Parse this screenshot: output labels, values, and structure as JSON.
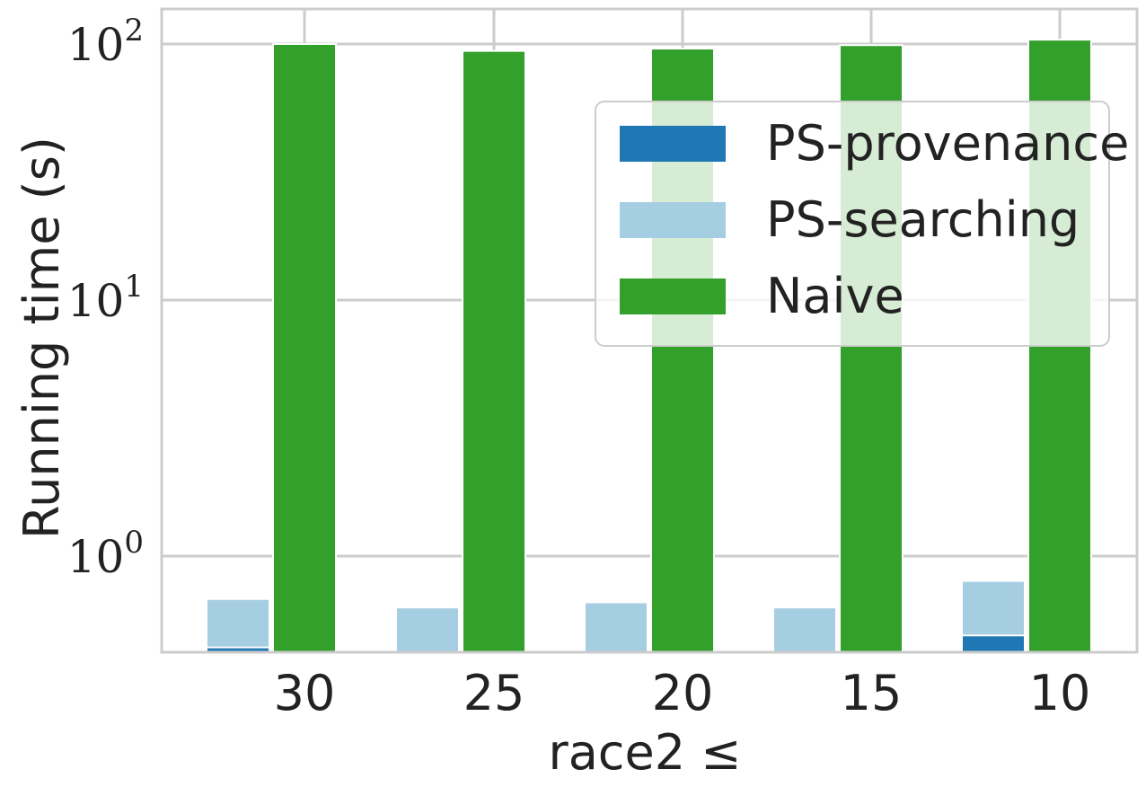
{
  "chart_data": {
    "type": "bar",
    "ylabel": "Running time (s)",
    "xlabel": "race2 ≤",
    "yscale": "log",
    "ylim": [
      0.42,
      130
    ],
    "grid": true,
    "legend_position": "top-right",
    "categories": [
      "30",
      "25",
      "20",
      "15",
      "10"
    ],
    "yticks": [
      {
        "value": 1,
        "base": "10",
        "exp": "0"
      },
      {
        "value": 10,
        "base": "10",
        "exp": "1"
      },
      {
        "value": 100,
        "base": "10",
        "exp": "2"
      }
    ],
    "series": [
      {
        "name": "PS-provenance",
        "color": "#1f78b4",
        "stack": "ps",
        "values": [
          0.44,
          null,
          null,
          null,
          0.49
        ]
      },
      {
        "name": "PS-searching",
        "color": "#a6cee3",
        "stack": "ps",
        "values": [
          0.68,
          0.63,
          0.66,
          0.63,
          0.8
        ]
      },
      {
        "name": "Naive",
        "color": "#33a02c",
        "stack": "naive",
        "values": [
          100,
          94,
          96,
          99,
          104
        ]
      }
    ]
  }
}
